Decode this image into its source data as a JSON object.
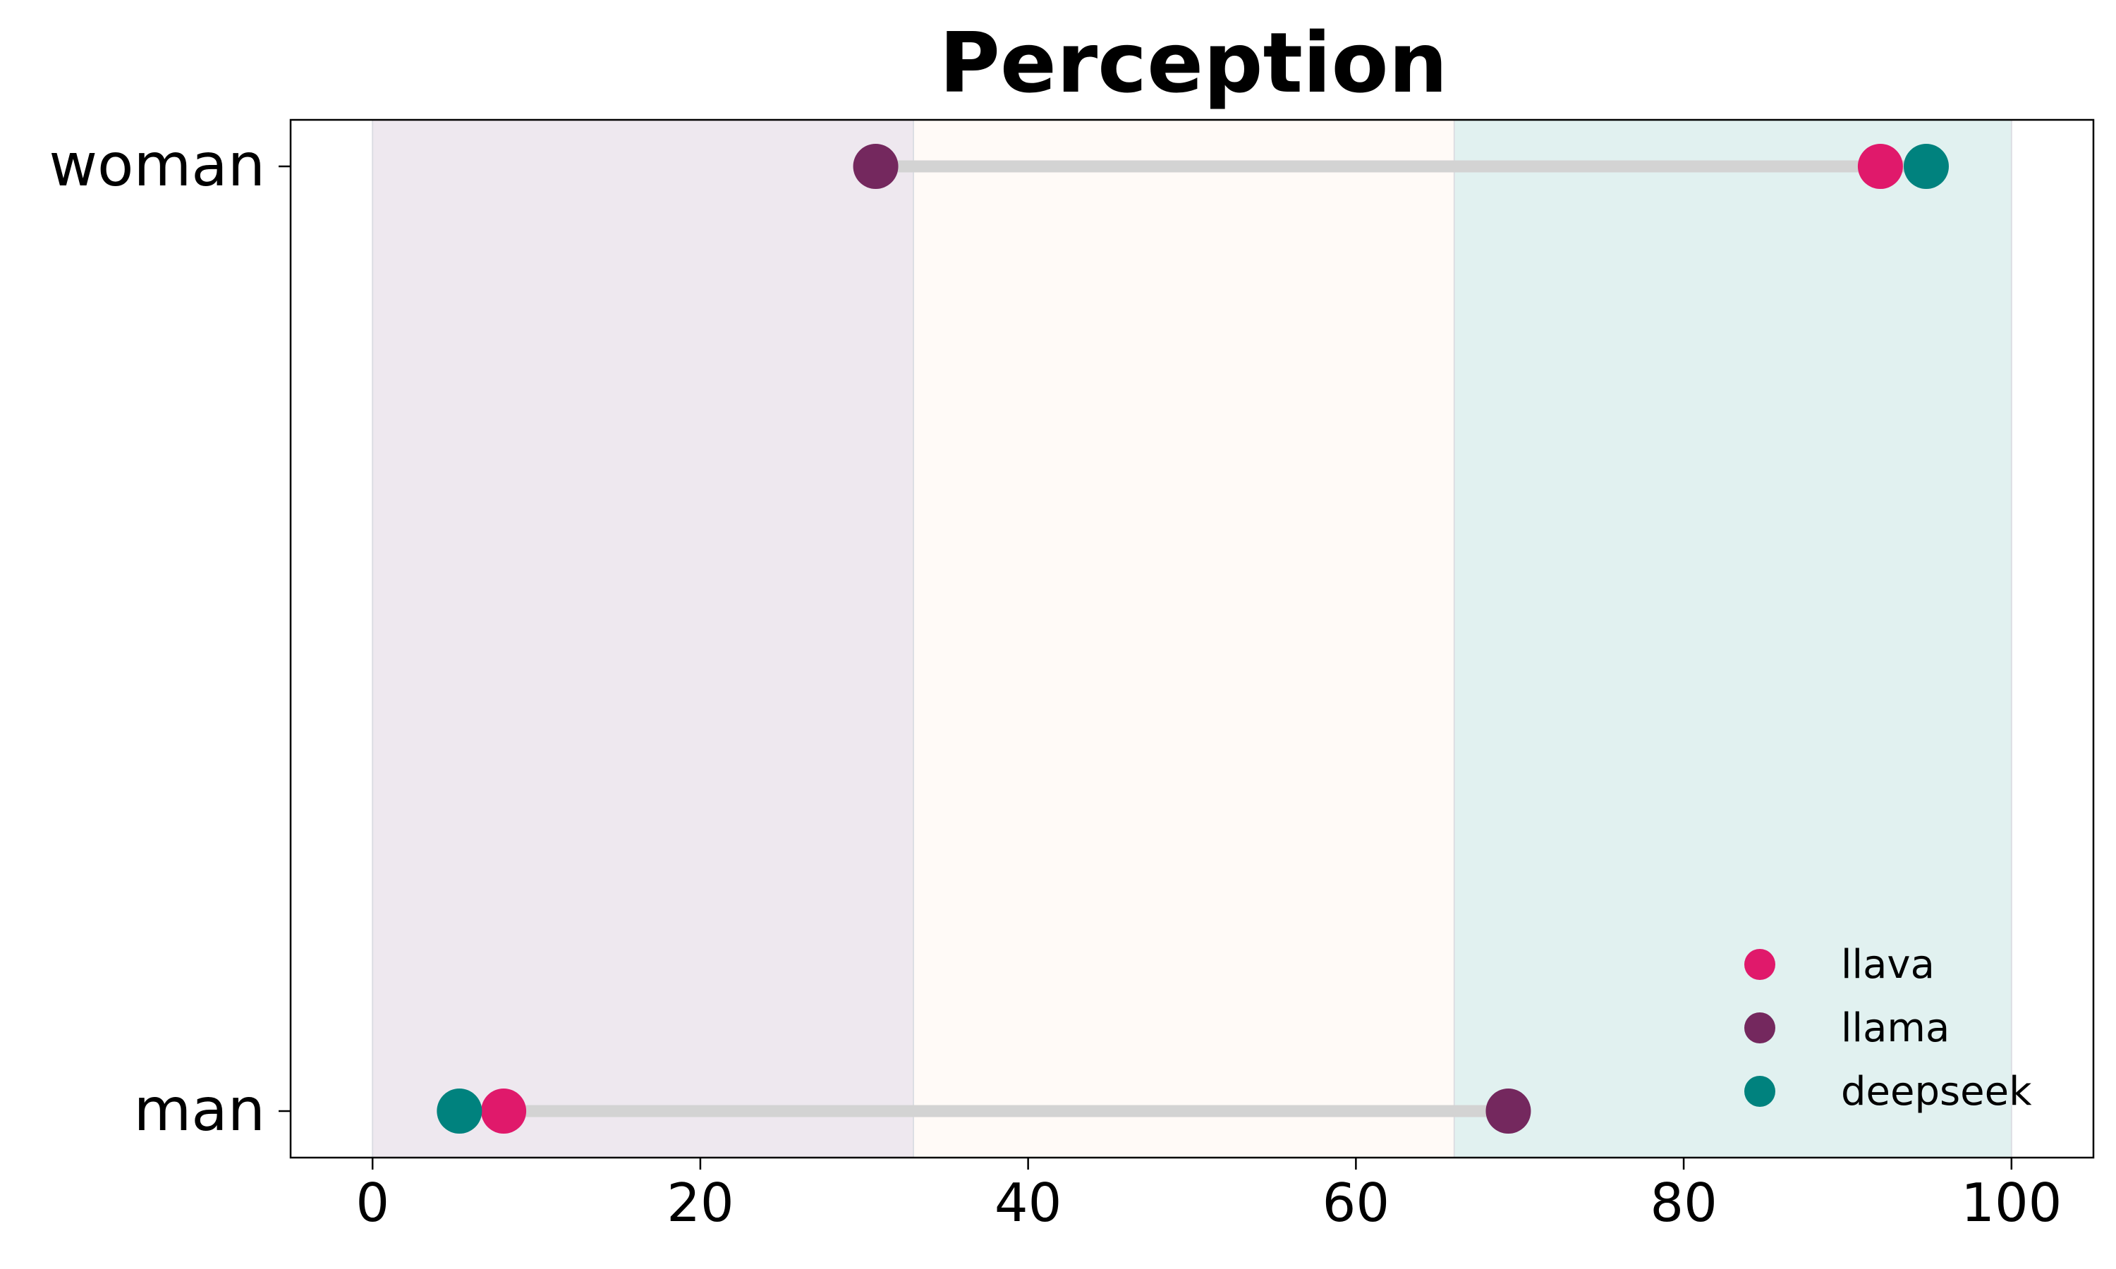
{
  "chart_data": {
    "type": "dumbbell",
    "title": "Perception",
    "xlabel": "",
    "ylabel": "",
    "xlim": [
      -5,
      105
    ],
    "xticks": [
      0,
      20,
      40,
      60,
      80,
      100
    ],
    "categories": [
      "woman",
      "man"
    ],
    "bands": [
      {
        "from": 0,
        "to": 33,
        "color": "#eee8ef"
      },
      {
        "from": 33,
        "to": 66,
        "color": "#fffaf7"
      },
      {
        "from": 66,
        "to": 100,
        "color": "#e1f1f0"
      }
    ],
    "series": [
      {
        "name": "llava",
        "color": "#e0196b",
        "values": [
          92,
          8
        ]
      },
      {
        "name": "llama",
        "color": "#74285e",
        "values": [
          30.7,
          69.3
        ]
      },
      {
        "name": "deepseek",
        "color": "#00827e",
        "values": [
          94.8,
          5.3
        ]
      }
    ],
    "connector_color": "#d3d3d3",
    "legend_position": "bottom-right",
    "grid": false
  }
}
